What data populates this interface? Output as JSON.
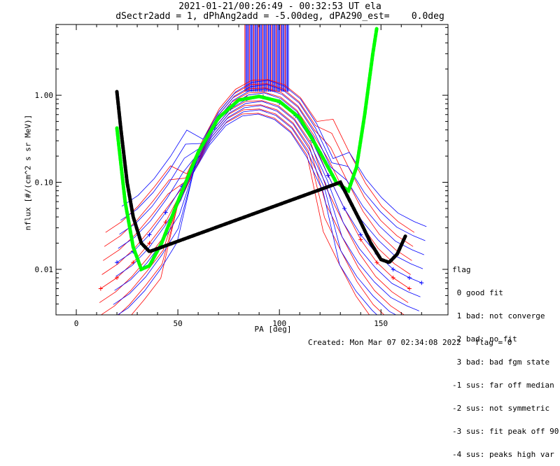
{
  "title_line1": "2021-01-21/00:26:49 - 00:32:53 UT ela",
  "title_line2": "dSectr2add = 1, dPhAng2add = -5.00deg, dPA290_est=    0.0deg",
  "footer": {
    "created": "Created: Mon Mar 07 02:34:08 2022",
    "flag": "flag = 0"
  },
  "flag_legend": {
    "header": "flag",
    "entries": [
      " 0 good fit",
      " 1 bad: not converge",
      " 2 bad: no fit",
      " 3 bad: bad fgm state",
      "-1 sus: far off median",
      "-2 sus: not symmetric",
      "-3 sus: fit peak off 90",
      "-4 sus: peaks high var"
    ]
  },
  "colors": {
    "series_red": "#ff0000",
    "series_blue": "#0000ff",
    "fit_green": "#00ff00",
    "fit_black": "#000000"
  },
  "chart_data": {
    "type": "line",
    "xlabel": "PA [deg]",
    "ylabel": "nflux [#/(cm^2 s sr MeV)]",
    "xlim": [
      -10,
      183
    ],
    "ylim": [
      0.003,
      6.5
    ],
    "yscale": "log",
    "xticks": [
      0,
      50,
      100,
      150
    ],
    "yticks": [
      0.01,
      0.1,
      1.0
    ],
    "ytick_labels": [
      "0.01",
      "0.10",
      "1.00"
    ],
    "series": [
      {
        "color": "red",
        "x": [
          12,
          20,
          28,
          36,
          44,
          52,
          60,
          68,
          76,
          84,
          92,
          100,
          108,
          116,
          124,
          132,
          140,
          148,
          156,
          164
        ],
        "y": [
          0.006,
          0.008,
          0.012,
          0.02,
          0.035,
          0.08,
          0.2,
          0.45,
          0.75,
          0.95,
          0.97,
          0.85,
          0.6,
          0.32,
          0.12,
          0.05,
          0.022,
          0.012,
          0.008,
          0.006
        ]
      },
      {
        "color": "blue",
        "x": [
          20,
          28,
          36,
          44,
          52,
          60,
          68,
          76,
          84,
          92,
          100,
          108,
          116,
          124,
          132,
          140,
          148,
          156,
          164,
          170
        ],
        "y": [
          0.012,
          0.016,
          0.025,
          0.045,
          0.09,
          0.2,
          0.42,
          0.7,
          0.9,
          0.95,
          0.82,
          0.58,
          0.3,
          0.12,
          0.05,
          0.025,
          0.015,
          0.01,
          0.008,
          0.007
        ]
      },
      {
        "color": "green",
        "x": [
          20,
          24,
          28,
          32,
          36,
          42,
          50,
          60,
          70,
          80,
          90,
          100,
          110,
          120,
          128,
          134,
          138,
          142,
          146,
          148
        ],
        "y": [
          0.42,
          0.06,
          0.018,
          0.01,
          0.011,
          0.02,
          0.06,
          0.22,
          0.55,
          0.88,
          0.97,
          0.85,
          0.55,
          0.22,
          0.1,
          0.08,
          0.15,
          0.6,
          3.0,
          6.0
        ]
      },
      {
        "color": "black",
        "x": [
          20,
          22,
          25,
          28,
          32,
          36,
          130,
          140,
          145,
          150,
          154,
          158,
          162
        ],
        "y": [
          1.1,
          0.4,
          0.1,
          0.04,
          0.02,
          0.016,
          0.1,
          0.035,
          0.02,
          0.013,
          0.012,
          0.015,
          0.024
        ]
      }
    ]
  }
}
